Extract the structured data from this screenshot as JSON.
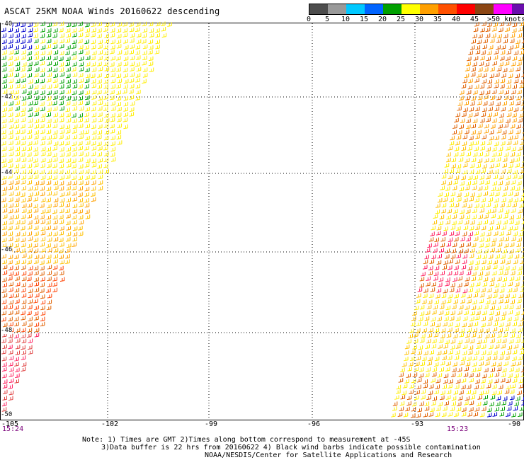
{
  "title": "ASCAT 25KM NOAA Winds 20160622 descending",
  "legend": {
    "labels": [
      "0",
      "5",
      "10",
      "15",
      "20",
      "25",
      "30",
      "35",
      "40",
      "45",
      ">50 knots"
    ],
    "colors": [
      "#4d4d4d",
      "#999999",
      "#00c8ff",
      "#0064ff",
      "#00a000",
      "#ffff00",
      "#ffa000",
      "#ff5000",
      "#ff0000",
      "#8b4513",
      "#ff00ff",
      "#6a0dad"
    ]
  },
  "axes": {
    "lon_labels": [
      "-105",
      "-102",
      "-99",
      "-96",
      "-93",
      "-90"
    ],
    "lat_labels": [
      "-40",
      "-42",
      "-44",
      "-46",
      "-48",
      "-50"
    ]
  },
  "times": {
    "left": "15:24",
    "right": "15:23"
  },
  "notes": {
    "line1": "Note: 1) Times are GMT 2)Times along bottom correspond to measurement at -45S",
    "line2": "3)Data buffer is 22 hrs from 20160622 4) Black wind barbs indicate possible contamination",
    "line3": "NOAA/NESDIS/Center for Satellite Applications and Research"
  }
}
